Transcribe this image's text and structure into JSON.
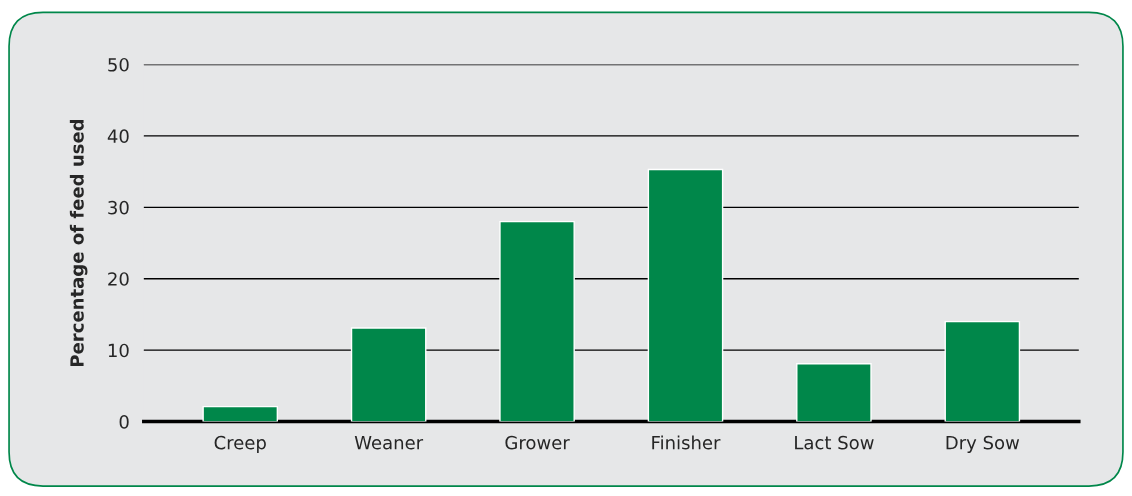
{
  "chart_data": {
    "type": "bar",
    "ylabel": "Percentage of feed used",
    "categories": [
      "Creep",
      "Weaner",
      "Grower",
      "Finisher",
      "Lact Sow",
      "Dry Sow"
    ],
    "values": [
      2.1,
      13.1,
      28,
      35.3,
      8.1,
      14
    ],
    "color": "#00874a",
    "ylim": [
      0,
      50
    ],
    "yticks": [
      0,
      10,
      20,
      30,
      40,
      50
    ],
    "grid": "y",
    "legend": false
  }
}
